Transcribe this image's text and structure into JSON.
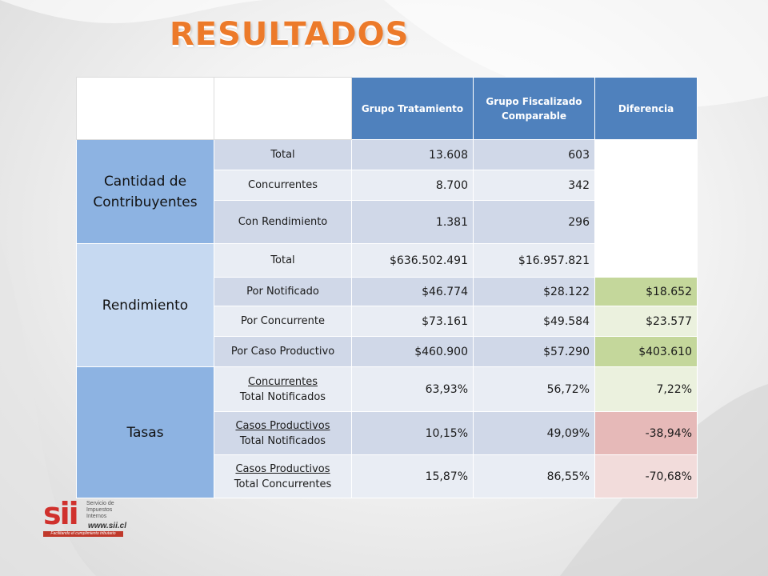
{
  "title": "RESULTADOS",
  "header": {
    "col1": "Grupo Tratamiento",
    "col2": "Grupo Fiscalizado Comparable",
    "col3": "Diferencia"
  },
  "groups": {
    "cantidad": "Cantidad de Contribuyentes",
    "rendimiento": "Rendimiento",
    "tasas": "Tasas"
  },
  "rows": [
    {
      "label": "Total",
      "a": "13.608",
      "b": "603",
      "d": ""
    },
    {
      "label": "Concurrentes",
      "a": "8.700",
      "b": "342",
      "d": ""
    },
    {
      "label": "Con Rendimiento",
      "a": "1.381",
      "b": "296",
      "d": ""
    },
    {
      "label": "Total",
      "a": "$636.502.491",
      "b": "$16.957.821",
      "d": ""
    },
    {
      "label": "Por Notificado",
      "a": "$46.774",
      "b": "$28.122",
      "d": "$18.652"
    },
    {
      "label": "Por Concurrente",
      "a": "$73.161",
      "b": "$49.584",
      "d": "$23.577"
    },
    {
      "label": "Por Caso Productivo",
      "a": "$460.900",
      "b": "$57.290",
      "d": "$403.610"
    },
    {
      "label_top": "Concurrentes",
      "label_bottom": "Total Notificados",
      "a": "63,93%",
      "b": "56,72%",
      "d": "7,22%"
    },
    {
      "label_top": "Casos Productivos",
      "label_bottom": "Total Notificados",
      "a": "10,15%",
      "b": "49,09%",
      "d": "-38,94%"
    },
    {
      "label_top": "Casos Productivos",
      "label_bottom": "Total Concurrentes",
      "a": "15,87%",
      "b": "86,55%",
      "d": "-70,68%"
    }
  ],
  "logo": {
    "mark": "sii",
    "text": "Servicio de Impuestos Internos",
    "url": "www.sii.cl",
    "tagline": "Facilitando el cumplimiento tributario"
  }
}
